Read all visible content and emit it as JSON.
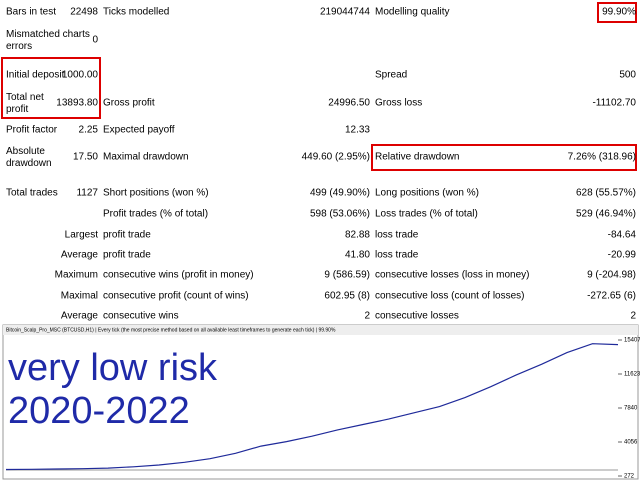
{
  "report": {
    "rows": [
      {
        "c1": {
          "label": "Bars in test",
          "value": "22498"
        },
        "c2": {
          "label": "Ticks modelled",
          "value": "219044744"
        },
        "c3": {
          "label": "Modelling quality",
          "value": "99.90%"
        }
      },
      {
        "c1": {
          "label": "Mismatched charts errors",
          "value": "0"
        }
      },
      {
        "c1": {
          "label": "Initial deposit",
          "value": "1000.00"
        },
        "c3": {
          "label": "Spread",
          "value": "500"
        }
      },
      {
        "c1": {
          "label": "Total net profit",
          "value": "13893.80"
        },
        "c2": {
          "label": "Gross profit",
          "value": "24996.50"
        },
        "c3": {
          "label": "Gross loss",
          "value": "-11102.70"
        }
      },
      {
        "c1": {
          "label": "Profit factor",
          "value": "2.25"
        },
        "c2": {
          "label": "Expected payoff",
          "value": "12.33"
        }
      },
      {
        "c1": {
          "label": "Absolute drawdown",
          "value": "17.50"
        },
        "c2": {
          "label": "Maximal drawdown",
          "value": "449.60 (2.95%)"
        },
        "c3": {
          "label": "Relative drawdown",
          "value": "7.26% (318.96)"
        }
      },
      {
        "c1": {
          "label": "Total trades",
          "value": "1127"
        },
        "c2": {
          "label": "Short positions (won %)",
          "value": "499 (49.90%)"
        },
        "c3": {
          "label": "Long positions (won %)",
          "value": "628 (55.57%)"
        }
      },
      {
        "c2": {
          "label": "Profit trades (% of total)",
          "value": "598 (53.06%)"
        },
        "c3": {
          "label": "Loss trades (% of total)",
          "value": "529 (46.94%)"
        }
      },
      {
        "c1": {
          "label": "Largest"
        },
        "c2": {
          "label": "profit trade",
          "value": "82.88"
        },
        "c3": {
          "label": "loss trade",
          "value": "-84.64"
        }
      },
      {
        "c1": {
          "label": "Average"
        },
        "c2": {
          "label": "profit trade",
          "value": "41.80"
        },
        "c3": {
          "label": "loss trade",
          "value": "-20.99"
        }
      },
      {
        "c1": {
          "label": "Maximum"
        },
        "c2": {
          "label": "consecutive wins (profit in money)",
          "value": "9 (586.59)"
        },
        "c3": {
          "label": "consecutive losses (loss in money)",
          "value": "9 (-204.98)"
        }
      },
      {
        "c1": {
          "label": "Maximal"
        },
        "c2": {
          "label": "consecutive profit (count of wins)",
          "value": "602.95 (8)"
        },
        "c3": {
          "label": "consecutive loss (count of losses)",
          "value": "-272.65 (6)"
        }
      },
      {
        "c1": {
          "label": "Average"
        },
        "c2": {
          "label": "consecutive wins",
          "value": "2"
        },
        "c3": {
          "label": "consecutive losses",
          "value": "2"
        }
      }
    ]
  },
  "chart_data": {
    "type": "line",
    "title": "Bitcoin_Scalp_Pro_MSC (BTCUSD,H1) | Every tick (the most precise method based on all available least timeframes to generate each tick) | 99.90%",
    "annotations": [
      "very low risk",
      "2020-2022"
    ],
    "values": [
      1000,
      1020,
      1050,
      1080,
      1150,
      1300,
      1500,
      1800,
      2200,
      2800,
      3600,
      4100,
      4700,
      5400,
      6000,
      6600,
      7300,
      8000,
      9000,
      10200,
      11500,
      12700,
      14000,
      15000,
      14893
    ],
    "color": "#1f2a9a",
    "ylim": [
      272,
      15407
    ],
    "yticks": [
      272,
      4056,
      7840,
      11623,
      15407
    ]
  }
}
